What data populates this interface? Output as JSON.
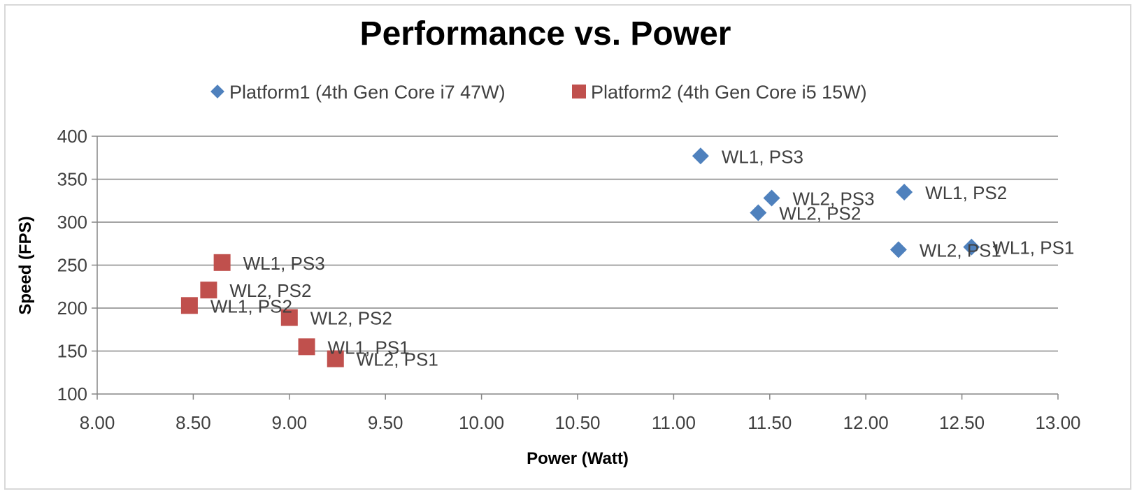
{
  "chart_data": {
    "type": "scatter",
    "title": "Performance vs. Power",
    "xlabel": "Power (Watt)",
    "ylabel": "Speed (FPS)",
    "xlim": [
      8.0,
      13.0
    ],
    "ylim": [
      100,
      400
    ],
    "x_ticks": [
      "8.00",
      "8.50",
      "9.00",
      "9.50",
      "10.00",
      "10.50",
      "11.00",
      "11.50",
      "12.00",
      "12.50",
      "13.00"
    ],
    "y_ticks": [
      "100",
      "150",
      "200",
      "250",
      "300",
      "350",
      "400"
    ],
    "grid": "horizontal",
    "legend_position": "top",
    "series": [
      {
        "name": "Platform1 (4th Gen Core i7 47W)",
        "marker": "diamond",
        "color": "#4f81bd",
        "points": [
          {
            "x": 11.14,
            "y": 377,
            "label": "WL1, PS3"
          },
          {
            "x": 11.51,
            "y": 328,
            "label": "WL2, PS3"
          },
          {
            "x": 11.44,
            "y": 311,
            "label": "WL2, PS2"
          },
          {
            "x": 12.2,
            "y": 335,
            "label": "WL1, PS2"
          },
          {
            "x": 12.17,
            "y": 268,
            "label": "WL2, PS1"
          },
          {
            "x": 12.55,
            "y": 271,
            "label": "WL1, PS1"
          }
        ]
      },
      {
        "name": "Platform2 (4th Gen Core i5 15W)",
        "marker": "square",
        "color": "#c0504d",
        "points": [
          {
            "x": 8.65,
            "y": 253,
            "label": "WL1, PS3"
          },
          {
            "x": 8.58,
            "y": 221,
            "label": "WL2, PS2"
          },
          {
            "x": 8.48,
            "y": 203,
            "label": "WL1, PS2"
          },
          {
            "x": 9.0,
            "y": 189,
            "label": "WL2, PS2"
          },
          {
            "x": 9.09,
            "y": 155,
            "label": "WL1, PS1"
          },
          {
            "x": 9.24,
            "y": 141,
            "label": "WL2, PS1"
          }
        ]
      }
    ]
  }
}
